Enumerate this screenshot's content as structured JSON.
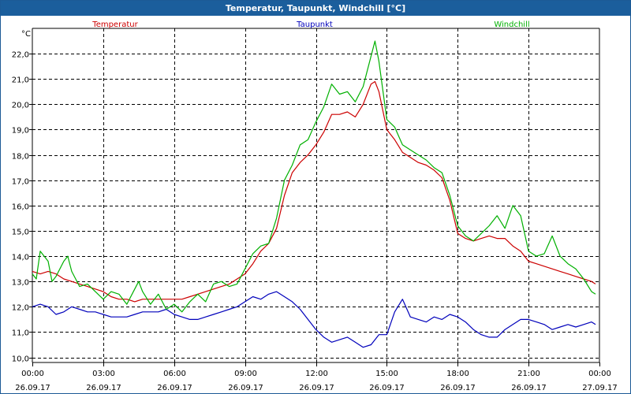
{
  "window": {
    "title": "Temperatur, Taupunkt, Windchill [°C]"
  },
  "chart_data": {
    "type": "line",
    "title": "Temperatur, Taupunkt, Windchill [°C]",
    "y_unit": "°C",
    "ylim": [
      9.8,
      23.0
    ],
    "xlim": [
      "26.09.17 00:00",
      "27.09.17 00:00"
    ],
    "grid": true,
    "legend_position": "top",
    "y_ticks": [
      "10,0",
      "11,0",
      "12,0",
      "13,0",
      "14,0",
      "15,0",
      "16,0",
      "17,0",
      "18,0",
      "19,0",
      "20,0",
      "21,0",
      "22,0"
    ],
    "x_ticks": [
      {
        "time": "00:00",
        "date": "26.09.17"
      },
      {
        "time": "03:00",
        "date": "26.09.17"
      },
      {
        "time": "06:00",
        "date": "26.09.17"
      },
      {
        "time": "09:00",
        "date": "26.09.17"
      },
      {
        "time": "12:00",
        "date": "26.09.17"
      },
      {
        "time": "15:00",
        "date": "26.09.17"
      },
      {
        "time": "18:00",
        "date": "26.09.17"
      },
      {
        "time": "21:00",
        "date": "26.09.17"
      },
      {
        "time": "00:00",
        "date": "27.09.17"
      }
    ],
    "series": [
      {
        "name": "Temperatur",
        "color": "#cc0000",
        "points": [
          [
            "00:00",
            13.4
          ],
          [
            "00:20",
            13.3
          ],
          [
            "00:40",
            13.4
          ],
          [
            "01:00",
            13.3
          ],
          [
            "01:20",
            13.1
          ],
          [
            "01:40",
            13.0
          ],
          [
            "02:00",
            12.9
          ],
          [
            "02:20",
            12.8
          ],
          [
            "02:40",
            12.7
          ],
          [
            "03:00",
            12.6
          ],
          [
            "03:20",
            12.4
          ],
          [
            "03:40",
            12.3
          ],
          [
            "04:00",
            12.3
          ],
          [
            "04:20",
            12.2
          ],
          [
            "04:40",
            12.3
          ],
          [
            "05:00",
            12.3
          ],
          [
            "05:20",
            12.3
          ],
          [
            "05:40",
            12.3
          ],
          [
            "06:00",
            12.3
          ],
          [
            "06:20",
            12.3
          ],
          [
            "06:40",
            12.4
          ],
          [
            "07:00",
            12.5
          ],
          [
            "07:20",
            12.6
          ],
          [
            "07:40",
            12.7
          ],
          [
            "08:00",
            12.8
          ],
          [
            "08:20",
            12.9
          ],
          [
            "08:40",
            13.1
          ],
          [
            "09:00",
            13.3
          ],
          [
            "09:20",
            13.7
          ],
          [
            "09:40",
            14.2
          ],
          [
            "10:00",
            14.5
          ],
          [
            "10:20",
            15.1
          ],
          [
            "10:40",
            16.4
          ],
          [
            "11:00",
            17.3
          ],
          [
            "11:20",
            17.7
          ],
          [
            "11:40",
            18.0
          ],
          [
            "12:00",
            18.4
          ],
          [
            "12:20",
            18.9
          ],
          [
            "12:40",
            19.6
          ],
          [
            "13:00",
            19.6
          ],
          [
            "13:20",
            19.7
          ],
          [
            "13:40",
            19.5
          ],
          [
            "14:00",
            20.0
          ],
          [
            "14:20",
            20.8
          ],
          [
            "14:30",
            20.9
          ],
          [
            "14:40",
            20.5
          ],
          [
            "15:00",
            19.0
          ],
          [
            "15:20",
            18.6
          ],
          [
            "15:40",
            18.1
          ],
          [
            "16:00",
            17.9
          ],
          [
            "16:20",
            17.7
          ],
          [
            "16:40",
            17.6
          ],
          [
            "17:00",
            17.4
          ],
          [
            "17:20",
            17.1
          ],
          [
            "17:40",
            16.2
          ],
          [
            "18:00",
            14.9
          ],
          [
            "18:20",
            14.7
          ],
          [
            "18:40",
            14.6
          ],
          [
            "19:00",
            14.7
          ],
          [
            "19:20",
            14.8
          ],
          [
            "19:40",
            14.7
          ],
          [
            "20:00",
            14.7
          ],
          [
            "20:20",
            14.4
          ],
          [
            "20:40",
            14.2
          ],
          [
            "21:00",
            13.8
          ],
          [
            "21:20",
            13.7
          ],
          [
            "21:40",
            13.6
          ],
          [
            "22:00",
            13.5
          ],
          [
            "22:20",
            13.4
          ],
          [
            "22:40",
            13.3
          ],
          [
            "23:00",
            13.2
          ],
          [
            "23:20",
            13.1
          ],
          [
            "23:40",
            13.0
          ],
          [
            "23:50",
            12.9
          ]
        ]
      },
      {
        "name": "Taupunkt",
        "color": "#0000bb",
        "points": [
          [
            "00:00",
            12.0
          ],
          [
            "00:20",
            12.1
          ],
          [
            "00:40",
            12.0
          ],
          [
            "01:00",
            11.7
          ],
          [
            "01:20",
            11.8
          ],
          [
            "01:40",
            12.0
          ],
          [
            "02:00",
            11.9
          ],
          [
            "02:20",
            11.8
          ],
          [
            "02:40",
            11.8
          ],
          [
            "03:00",
            11.7
          ],
          [
            "03:20",
            11.6
          ],
          [
            "03:40",
            11.6
          ],
          [
            "04:00",
            11.6
          ],
          [
            "04:20",
            11.7
          ],
          [
            "04:40",
            11.8
          ],
          [
            "05:00",
            11.8
          ],
          [
            "05:20",
            11.8
          ],
          [
            "05:40",
            11.9
          ],
          [
            "06:00",
            11.7
          ],
          [
            "06:20",
            11.6
          ],
          [
            "06:40",
            11.5
          ],
          [
            "07:00",
            11.5
          ],
          [
            "07:20",
            11.6
          ],
          [
            "07:40",
            11.7
          ],
          [
            "08:00",
            11.8
          ],
          [
            "08:20",
            11.9
          ],
          [
            "08:40",
            12.0
          ],
          [
            "09:00",
            12.2
          ],
          [
            "09:20",
            12.4
          ],
          [
            "09:40",
            12.3
          ],
          [
            "10:00",
            12.5
          ],
          [
            "10:20",
            12.6
          ],
          [
            "10:40",
            12.4
          ],
          [
            "11:00",
            12.2
          ],
          [
            "11:20",
            11.9
          ],
          [
            "11:40",
            11.5
          ],
          [
            "12:00",
            11.1
          ],
          [
            "12:20",
            10.8
          ],
          [
            "12:40",
            10.6
          ],
          [
            "13:00",
            10.7
          ],
          [
            "13:20",
            10.8
          ],
          [
            "13:40",
            10.6
          ],
          [
            "14:00",
            10.4
          ],
          [
            "14:20",
            10.5
          ],
          [
            "14:40",
            10.9
          ],
          [
            "15:00",
            10.9
          ],
          [
            "15:20",
            11.8
          ],
          [
            "15:40",
            12.3
          ],
          [
            "16:00",
            11.6
          ],
          [
            "16:20",
            11.5
          ],
          [
            "16:40",
            11.4
          ],
          [
            "17:00",
            11.6
          ],
          [
            "17:20",
            11.5
          ],
          [
            "17:40",
            11.7
          ],
          [
            "18:00",
            11.6
          ],
          [
            "18:20",
            11.4
          ],
          [
            "18:40",
            11.1
          ],
          [
            "19:00",
            10.9
          ],
          [
            "19:20",
            10.8
          ],
          [
            "19:40",
            10.8
          ],
          [
            "20:00",
            11.1
          ],
          [
            "20:20",
            11.3
          ],
          [
            "20:40",
            11.5
          ],
          [
            "21:00",
            11.5
          ],
          [
            "21:20",
            11.4
          ],
          [
            "21:40",
            11.3
          ],
          [
            "22:00",
            11.1
          ],
          [
            "22:20",
            11.2
          ],
          [
            "22:40",
            11.3
          ],
          [
            "23:00",
            11.2
          ],
          [
            "23:20",
            11.3
          ],
          [
            "23:40",
            11.4
          ],
          [
            "23:50",
            11.3
          ]
        ]
      },
      {
        "name": "Windchill",
        "color": "#00b000",
        "points": [
          [
            "00:00",
            13.3
          ],
          [
            "00:10",
            13.1
          ],
          [
            "00:20",
            14.2
          ],
          [
            "00:40",
            13.8
          ],
          [
            "00:50",
            13.0
          ],
          [
            "01:00",
            13.2
          ],
          [
            "01:20",
            13.8
          ],
          [
            "01:30",
            14.0
          ],
          [
            "01:40",
            13.4
          ],
          [
            "02:00",
            12.8
          ],
          [
            "02:20",
            12.9
          ],
          [
            "02:40",
            12.6
          ],
          [
            "03:00",
            12.3
          ],
          [
            "03:20",
            12.6
          ],
          [
            "03:40",
            12.5
          ],
          [
            "04:00",
            12.1
          ],
          [
            "04:20",
            12.7
          ],
          [
            "04:30",
            13.0
          ],
          [
            "04:40",
            12.6
          ],
          [
            "05:00",
            12.1
          ],
          [
            "05:20",
            12.5
          ],
          [
            "05:40",
            11.9
          ],
          [
            "06:00",
            12.1
          ],
          [
            "06:20",
            11.8
          ],
          [
            "06:40",
            12.2
          ],
          [
            "07:00",
            12.5
          ],
          [
            "07:20",
            12.2
          ],
          [
            "07:40",
            12.9
          ],
          [
            "08:00",
            13.0
          ],
          [
            "08:20",
            12.8
          ],
          [
            "08:40",
            12.9
          ],
          [
            "09:00",
            13.5
          ],
          [
            "09:20",
            14.1
          ],
          [
            "09:40",
            14.4
          ],
          [
            "10:00",
            14.5
          ],
          [
            "10:20",
            15.5
          ],
          [
            "10:40",
            17.0
          ],
          [
            "11:00",
            17.6
          ],
          [
            "11:20",
            18.4
          ],
          [
            "11:40",
            18.6
          ],
          [
            "12:00",
            19.3
          ],
          [
            "12:20",
            19.9
          ],
          [
            "12:40",
            20.8
          ],
          [
            "13:00",
            20.4
          ],
          [
            "13:20",
            20.5
          ],
          [
            "13:40",
            20.1
          ],
          [
            "14:00",
            20.7
          ],
          [
            "14:20",
            21.9
          ],
          [
            "14:30",
            22.5
          ],
          [
            "14:40",
            21.7
          ],
          [
            "15:00",
            19.4
          ],
          [
            "15:20",
            19.1
          ],
          [
            "15:40",
            18.4
          ],
          [
            "16:00",
            18.2
          ],
          [
            "16:20",
            18.0
          ],
          [
            "16:40",
            17.8
          ],
          [
            "17:00",
            17.5
          ],
          [
            "17:20",
            17.3
          ],
          [
            "17:40",
            16.4
          ],
          [
            "18:00",
            15.2
          ],
          [
            "18:20",
            14.8
          ],
          [
            "18:40",
            14.6
          ],
          [
            "19:00",
            14.9
          ],
          [
            "19:20",
            15.2
          ],
          [
            "19:40",
            15.6
          ],
          [
            "20:00",
            15.1
          ],
          [
            "20:20",
            16.0
          ],
          [
            "20:40",
            15.6
          ],
          [
            "21:00",
            14.2
          ],
          [
            "21:20",
            14.0
          ],
          [
            "21:40",
            14.1
          ],
          [
            "22:00",
            14.8
          ],
          [
            "22:20",
            14.0
          ],
          [
            "22:40",
            13.7
          ],
          [
            "23:00",
            13.5
          ],
          [
            "23:20",
            13.1
          ],
          [
            "23:40",
            12.6
          ],
          [
            "23:50",
            12.5
          ]
        ]
      }
    ]
  }
}
